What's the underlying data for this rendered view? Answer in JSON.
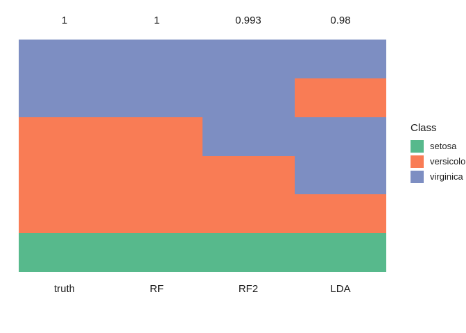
{
  "chart_data": {
    "type": "heatmap",
    "description": "Stacked class-membership columns comparing ground truth to classifier predictions; each column is divided into vertical bands (fractions of all observations, in sixths) colored by class.",
    "columns": [
      "truth",
      "RF",
      "RF2",
      "LDA"
    ],
    "accuracy_labels": [
      "1",
      "1",
      "0.993",
      "0.98"
    ],
    "classes": [
      "setosa",
      "versicolor",
      "virginica"
    ],
    "colors": {
      "setosa": "#57b98c",
      "versicolor": "#f97c55",
      "virginica": "#7d8ec2"
    },
    "column_segments": [
      {
        "column": "truth",
        "segments": [
          {
            "class": "virginica",
            "fraction": 0.3333
          },
          {
            "class": "versicolor",
            "fraction": 0.5
          },
          {
            "class": "setosa",
            "fraction": 0.1667
          }
        ]
      },
      {
        "column": "RF",
        "segments": [
          {
            "class": "virginica",
            "fraction": 0.3333
          },
          {
            "class": "versicolor",
            "fraction": 0.5
          },
          {
            "class": "setosa",
            "fraction": 0.1667
          }
        ]
      },
      {
        "column": "RF2",
        "segments": [
          {
            "class": "virginica",
            "fraction": 0.5
          },
          {
            "class": "versicolor",
            "fraction": 0.3333
          },
          {
            "class": "setosa",
            "fraction": 0.1667
          }
        ]
      },
      {
        "column": "LDA",
        "segments": [
          {
            "class": "virginica",
            "fraction": 0.1667
          },
          {
            "class": "versicolor",
            "fraction": 0.1667
          },
          {
            "class": "virginica",
            "fraction": 0.3333
          },
          {
            "class": "versicolor",
            "fraction": 0.1667
          },
          {
            "class": "setosa",
            "fraction": 0.1667
          }
        ]
      }
    ],
    "legend": {
      "title": "Class",
      "position": "right",
      "items": [
        {
          "label": "setosa",
          "color": "#57b98c"
        },
        {
          "label": "versicolor",
          "color": "#f97c55"
        },
        {
          "label": "virginica",
          "color": "#7d8ec2"
        }
      ]
    },
    "x_tick_labels": [
      "truth",
      "RF",
      "RF2",
      "LDA"
    ],
    "grid": false,
    "background": "#ffffff"
  },
  "layout_labels": {
    "top": [
      "1",
      "1",
      "0.993",
      "0.98"
    ],
    "bottom": [
      "truth",
      "RF",
      "RF2",
      "LDA"
    ]
  }
}
